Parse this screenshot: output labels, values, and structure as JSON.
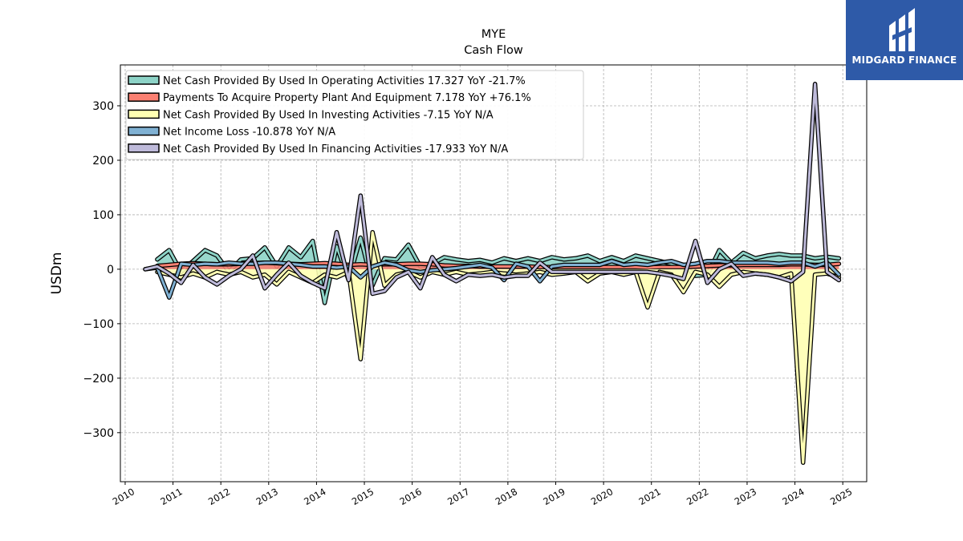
{
  "brand": {
    "name": "MIDGARD FINANCE",
    "bg_color": "#2e5aa8"
  },
  "chart_data": {
    "type": "line",
    "title": "MYE",
    "subtitle": "Cash Flow",
    "xlabel": "",
    "ylabel": "USDm",
    "xlim": [
      2009.9,
      2025.5
    ],
    "ylim": [
      -390,
      375
    ],
    "x_ticks": [
      "2010",
      "2011",
      "2012",
      "2013",
      "2014",
      "2015",
      "2016",
      "2017",
      "2018",
      "2019",
      "2020",
      "2021",
      "2022",
      "2023",
      "2024",
      "2025"
    ],
    "y_ticks": [
      300,
      200,
      100,
      0,
      -100,
      -200,
      -300
    ],
    "y_tick_labels": [
      "300",
      "200",
      "100",
      "0",
      "−100",
      "−200",
      "−300"
    ],
    "grid": true,
    "legend_position": "top-left",
    "series": [
      {
        "name": "Net Cash Provided By Used In Operating Activities  17.327 YoY -21.7%",
        "color": "#8dd3c7",
        "fill_to_zero": true,
        "x": [
          2010.67,
          2010.92,
          2011.17,
          2011.42,
          2011.67,
          2011.92,
          2012.17,
          2012.42,
          2012.67,
          2012.92,
          2013.17,
          2013.42,
          2013.67,
          2013.92,
          2014.17,
          2014.42,
          2014.67,
          2014.92,
          2015.17,
          2015.42,
          2015.67,
          2015.92,
          2016.17,
          2016.42,
          2016.67,
          2016.92,
          2017.17,
          2017.42,
          2017.67,
          2017.92,
          2018.17,
          2018.42,
          2018.67,
          2018.92,
          2019.17,
          2019.42,
          2019.67,
          2019.92,
          2020.17,
          2020.42,
          2020.67,
          2020.92,
          2021.17,
          2021.42,
          2021.67,
          2021.92,
          2022.17,
          2022.42,
          2022.67,
          2022.92,
          2023.17,
          2023.42,
          2023.67,
          2023.92,
          2024.17,
          2024.42,
          2024.67,
          2024.92
        ],
        "values": [
          18,
          35,
          -5,
          15,
          35,
          25,
          -5,
          18,
          20,
          40,
          5,
          40,
          22,
          52,
          -62,
          42,
          -20,
          58,
          -30,
          20,
          18,
          45,
          5,
          10,
          22,
          18,
          15,
          17,
          12,
          20,
          15,
          20,
          15,
          22,
          18,
          20,
          25,
          15,
          22,
          15,
          25,
          20,
          15,
          10,
          8,
          -12,
          -10,
          35,
          12,
          30,
          20,
          25,
          28,
          25,
          25,
          20,
          23,
          20
        ]
      },
      {
        "name": "Payments To Acquire Property Plant And Equipment  7.178 YoY +76.1%",
        "color": "#fb8072",
        "fill_to_zero": true,
        "x": [
          2010.67,
          2010.92,
          2011.17,
          2011.42,
          2011.67,
          2011.92,
          2012.17,
          2012.42,
          2012.67,
          2012.92,
          2013.17,
          2013.42,
          2013.67,
          2013.92,
          2014.17,
          2014.42,
          2014.67,
          2014.92,
          2015.17,
          2015.42,
          2015.67,
          2015.92,
          2016.17,
          2016.42,
          2016.67,
          2016.92,
          2017.17,
          2017.42,
          2017.67,
          2017.92,
          2018.17,
          2018.42,
          2018.67,
          2018.92,
          2019.17,
          2019.42,
          2019.67,
          2019.92,
          2020.17,
          2020.42,
          2020.67,
          2020.92,
          2021.17,
          2021.42,
          2021.67,
          2021.92,
          2022.17,
          2022.42,
          2022.67,
          2022.92,
          2023.17,
          2023.42,
          2023.67,
          2023.92,
          2024.17,
          2024.42,
          2024.67,
          2024.92
        ],
        "values": [
          6,
          8,
          10,
          11,
          10,
          9,
          9,
          10,
          11,
          12,
          11,
          10,
          9,
          10,
          11,
          10,
          8,
          9,
          8,
          9,
          9,
          10,
          10,
          9,
          7,
          6,
          6,
          5,
          5,
          5,
          5,
          5,
          4,
          4,
          4,
          4,
          4,
          4,
          4,
          4,
          4,
          3,
          4,
          4,
          4,
          5,
          6,
          7,
          7,
          8,
          8,
          8,
          8,
          9,
          9,
          8,
          8,
          10
        ]
      },
      {
        "name": "Net Cash Provided By Used In Investing Activities  -7.15 YoY N/A",
        "color": "#ffffb3",
        "fill_to_zero": true,
        "x": [
          2010.67,
          2010.92,
          2011.17,
          2011.42,
          2011.67,
          2011.92,
          2012.17,
          2012.42,
          2012.67,
          2012.92,
          2013.17,
          2013.42,
          2013.67,
          2013.92,
          2014.17,
          2014.42,
          2014.67,
          2014.92,
          2015.17,
          2015.42,
          2015.67,
          2015.92,
          2016.17,
          2016.42,
          2016.67,
          2016.92,
          2017.17,
          2017.42,
          2017.67,
          2017.92,
          2018.17,
          2018.42,
          2018.67,
          2018.92,
          2019.17,
          2019.42,
          2019.67,
          2019.92,
          2020.17,
          2020.42,
          2020.67,
          2020.92,
          2021.17,
          2021.42,
          2021.67,
          2021.92,
          2022.17,
          2022.42,
          2022.67,
          2022.92,
          2023.17,
          2023.42,
          2023.67,
          2023.92,
          2024.17,
          2024.42,
          2024.67,
          2024.92
        ],
        "values": [
          -5,
          -10,
          -15,
          -8,
          -15,
          -5,
          -10,
          -5,
          -15,
          -10,
          -28,
          -5,
          -15,
          -25,
          -10,
          -15,
          -5,
          -165,
          68,
          -30,
          -10,
          -5,
          -15,
          -5,
          -10,
          -5,
          -10,
          -8,
          -5,
          -8,
          -10,
          -8,
          -5,
          -10,
          -8,
          -5,
          -22,
          -8,
          -5,
          -10,
          -5,
          -70,
          -5,
          -10,
          -42,
          -5,
          -10,
          -32,
          -10,
          -5,
          -8,
          -10,
          -15,
          -8,
          -355,
          -10,
          -8,
          -15
        ]
      },
      {
        "name": "Net Income Loss  -10.878 YoY N/A",
        "color": "#80b1d3",
        "fill_to_zero": false,
        "x": [
          2010.42,
          2010.67,
          2010.92,
          2011.17,
          2011.42,
          2011.67,
          2011.92,
          2012.17,
          2012.42,
          2012.67,
          2012.92,
          2013.17,
          2013.42,
          2013.67,
          2013.92,
          2014.17,
          2014.42,
          2014.67,
          2014.92,
          2015.17,
          2015.42,
          2015.67,
          2015.92,
          2016.17,
          2016.42,
          2016.67,
          2016.92,
          2017.17,
          2017.42,
          2017.67,
          2017.92,
          2018.17,
          2018.42,
          2018.67,
          2018.92,
          2019.17,
          2019.42,
          2019.67,
          2019.92,
          2020.17,
          2020.42,
          2020.67,
          2020.92,
          2021.17,
          2021.42,
          2021.67,
          2021.92,
          2022.17,
          2022.42,
          2022.67,
          2022.92,
          2023.17,
          2023.42,
          2023.67,
          2023.92,
          2024.17,
          2024.42,
          2024.67,
          2024.92
        ],
        "values": [
          0,
          3,
          -52,
          10,
          8,
          10,
          9,
          12,
          10,
          10,
          12,
          12,
          10,
          8,
          5,
          5,
          3,
          5,
          -15,
          5,
          12,
          8,
          -2,
          -5,
          -2,
          0,
          2,
          5,
          8,
          3,
          -20,
          10,
          5,
          -22,
          5,
          8,
          8,
          8,
          8,
          15,
          8,
          10,
          8,
          12,
          15,
          8,
          10,
          15,
          15,
          12,
          12,
          12,
          12,
          10,
          12,
          12,
          5,
          12,
          -10
        ]
      },
      {
        "name": "Net Cash Provided By Used In Financing Activities  -17.933 YoY N/A",
        "color": "#bebada",
        "fill_to_zero": false,
        "x": [
          2010.42,
          2010.67,
          2010.92,
          2011.17,
          2011.42,
          2011.67,
          2011.92,
          2012.17,
          2012.42,
          2012.67,
          2012.92,
          2013.17,
          2013.42,
          2013.67,
          2013.92,
          2014.17,
          2014.42,
          2014.67,
          2014.92,
          2015.17,
          2015.42,
          2015.67,
          2015.92,
          2016.17,
          2016.42,
          2016.67,
          2016.92,
          2017.17,
          2017.42,
          2017.67,
          2017.92,
          2018.17,
          2018.42,
          2018.67,
          2018.92,
          2019.17,
          2019.42,
          2019.67,
          2019.92,
          2020.17,
          2020.42,
          2020.67,
          2020.92,
          2021.17,
          2021.42,
          2021.67,
          2021.92,
          2022.17,
          2022.42,
          2022.67,
          2022.92,
          2023.17,
          2023.42,
          2023.67,
          2023.92,
          2024.17,
          2024.42,
          2024.67,
          2024.92
        ],
        "values": [
          0,
          5,
          -8,
          -25,
          8,
          -15,
          -28,
          -12,
          0,
          25,
          -35,
          -10,
          12,
          -12,
          -25,
          -35,
          68,
          -20,
          135,
          -45,
          -40,
          -15,
          -5,
          -35,
          22,
          -10,
          -22,
          -10,
          -12,
          -10,
          -15,
          -12,
          -12,
          12,
          -5,
          -5,
          -5,
          -5,
          -5,
          -5,
          -5,
          -5,
          -5,
          -8,
          -12,
          -18,
          52,
          -25,
          0,
          10,
          -12,
          -8,
          -10,
          -15,
          -22,
          -5,
          340,
          -5,
          -20
        ]
      }
    ]
  }
}
